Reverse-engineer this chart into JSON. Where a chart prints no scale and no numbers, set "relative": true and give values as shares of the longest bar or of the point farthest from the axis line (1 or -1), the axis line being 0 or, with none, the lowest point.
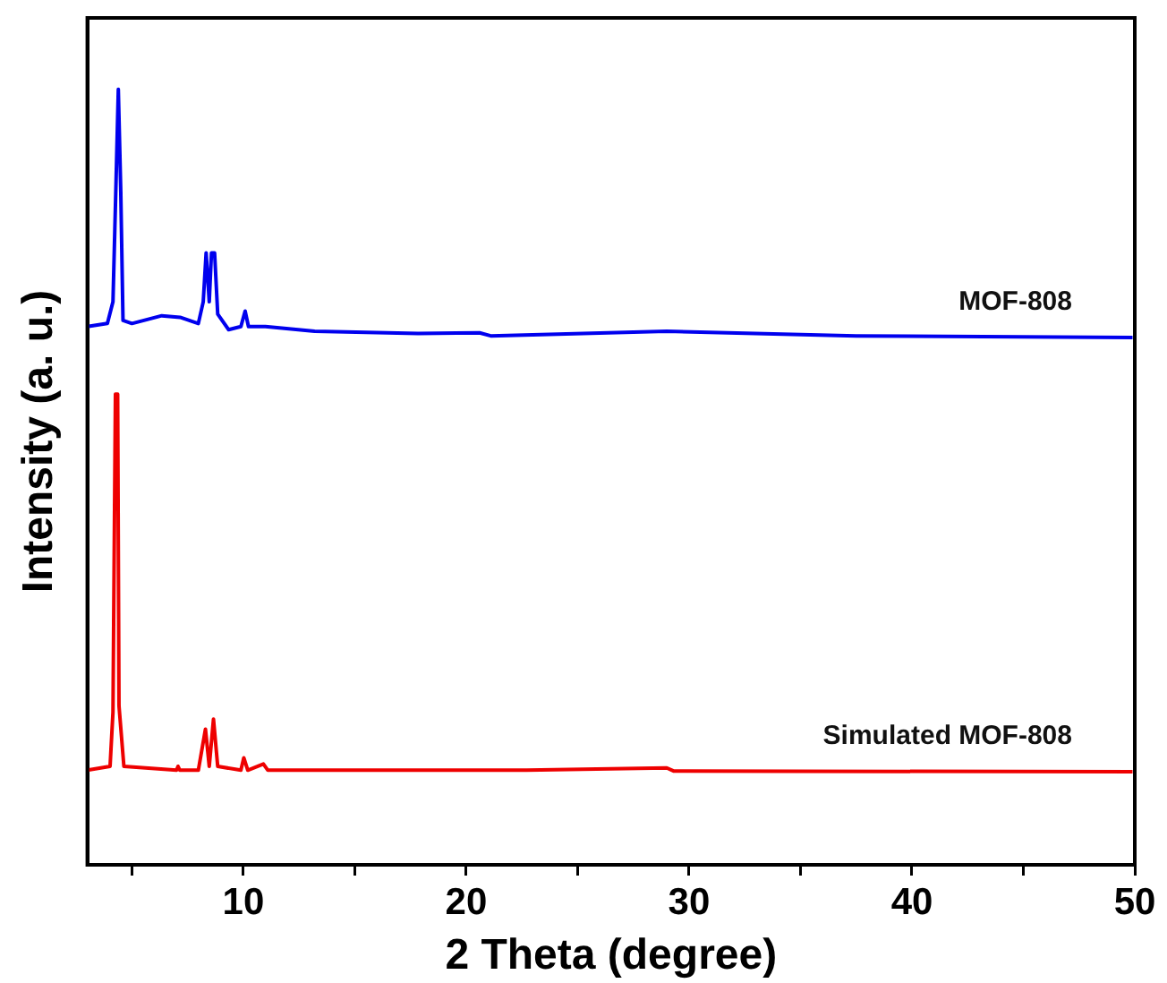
{
  "chart_data": {
    "type": "line",
    "xlabel": "2 Theta (degree)",
    "ylabel": "Intensity (a. u.)",
    "relative": true,
    "xlim": [
      3,
      50
    ],
    "xticks": [
      {
        "value": 5,
        "label": null
      },
      10,
      {
        "value": 15,
        "label": null
      },
      20,
      {
        "value": 25,
        "label": null
      },
      30,
      {
        "value": 35,
        "label": null
      },
      40,
      {
        "value": 45,
        "label": null
      },
      50
    ],
    "marker": "none",
    "line_style": "solid",
    "legend": false,
    "grid": false,
    "series": [
      {
        "name": "MOF-808",
        "color": "#0000ee",
        "x": [
          3.0,
          3.9,
          4.15,
          4.29,
          4.39,
          4.5,
          4.6,
          5.0,
          6.34,
          7.16,
          7.98,
          8.2,
          8.33,
          8.47,
          8.57,
          8.71,
          8.85,
          9.34,
          9.89,
          10.08,
          10.23,
          10.99,
          13.2,
          17.84,
          20.6,
          21.1,
          29.0,
          37.5,
          49.9
        ],
        "values": [
          0.694,
          0.698,
          0.726,
          0.883,
          1,
          0.868,
          0.702,
          0.698,
          0.708,
          0.706,
          0.698,
          0.726,
          0.789,
          0.726,
          0.789,
          0.789,
          0.71,
          0.69,
          0.694,
          0.714,
          0.694,
          0.694,
          0.688,
          0.685,
          0.686,
          0.682,
          0.688,
          0.682,
          0.68
        ]
      },
      {
        "name": "Simulated MOF-808",
        "color": "#ee0000",
        "x": [
          3.0,
          4.02,
          4.15,
          4.26,
          4.36,
          4.42,
          4.64,
          7.0,
          7.07,
          7.15,
          7.98,
          8.3,
          8.47,
          8.66,
          8.85,
          9.89,
          10.02,
          10.2,
          10.9,
          11.1,
          22.7,
          29.0,
          29.3,
          49.9
        ],
        "values": [
          0.122,
          0.127,
          0.197,
          0.607,
          0.607,
          0.205,
          0.127,
          0.122,
          0.127,
          0.122,
          0.122,
          0.175,
          0.127,
          0.188,
          0.127,
          0.122,
          0.138,
          0.122,
          0.13,
          0.122,
          0.122,
          0.125,
          0.121,
          0.12
        ]
      }
    ]
  }
}
